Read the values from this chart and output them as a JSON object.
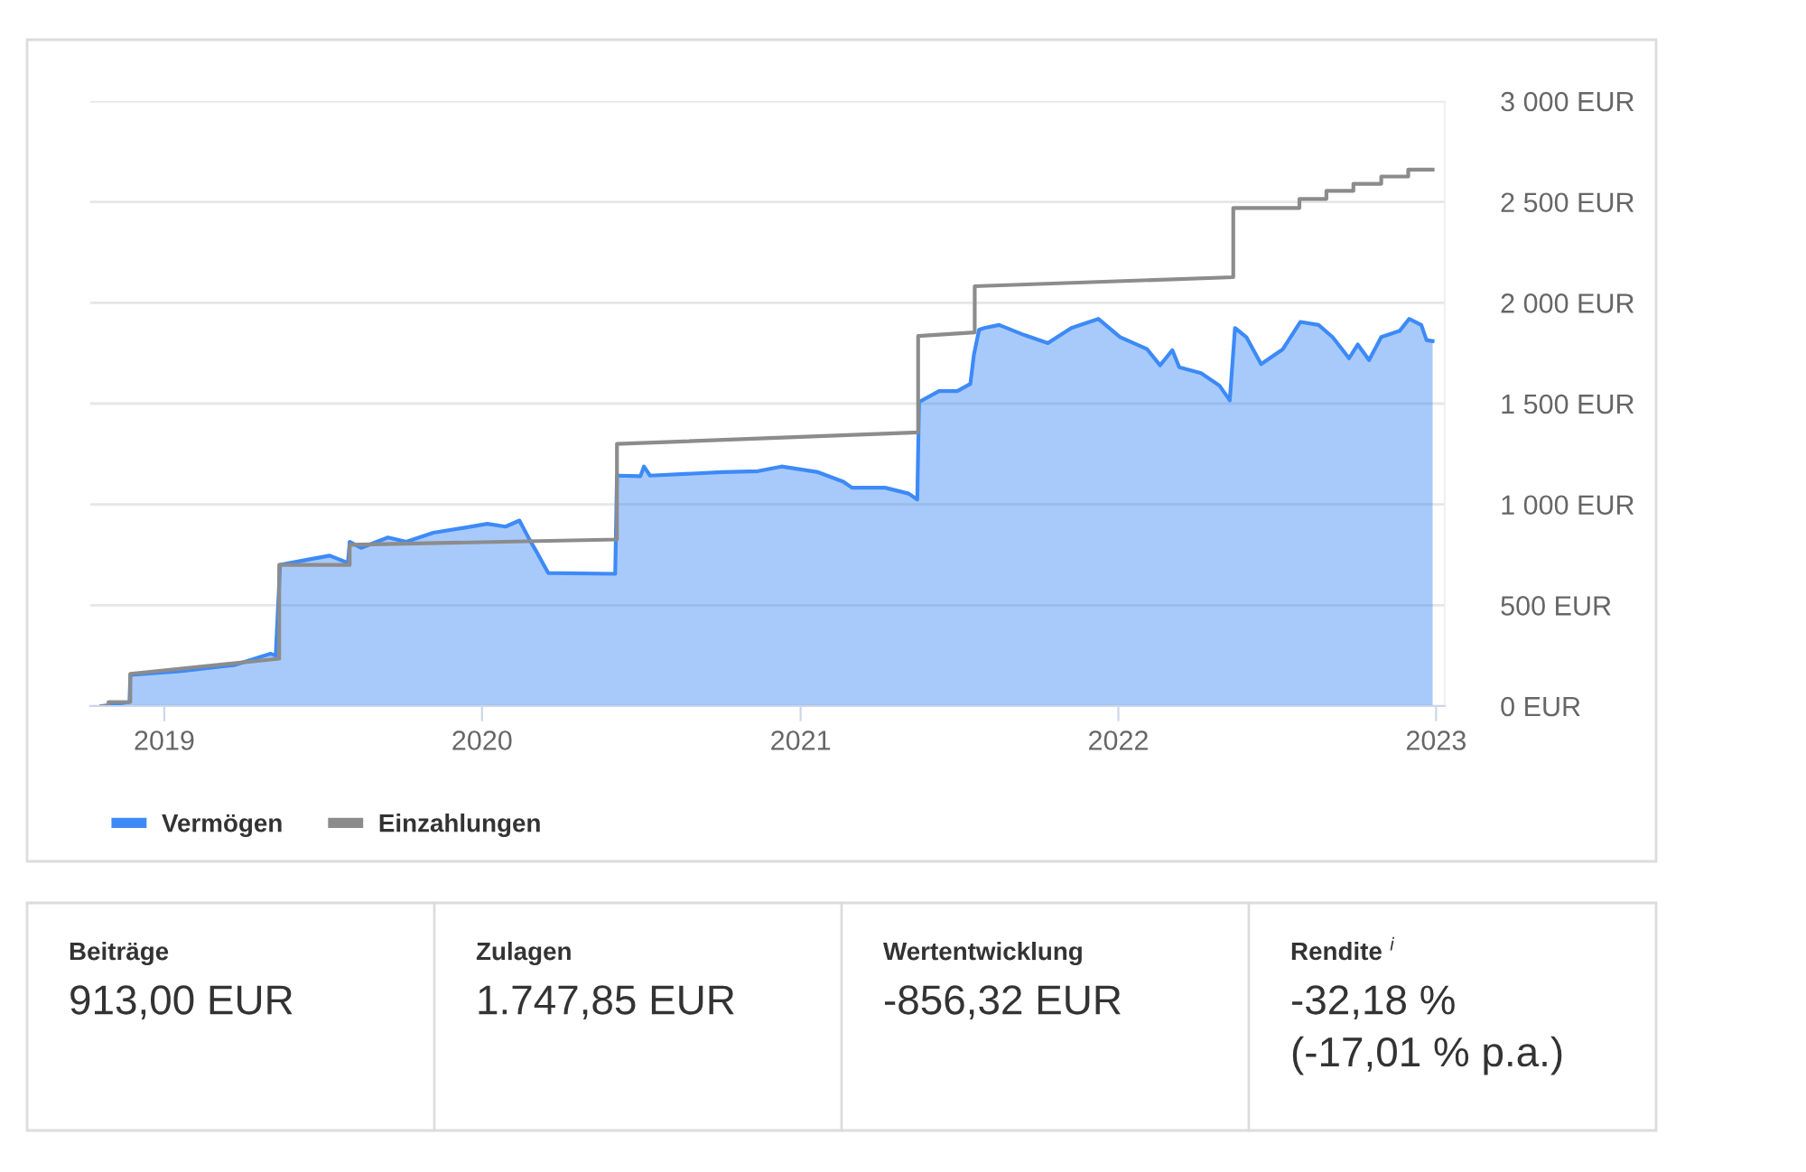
{
  "chart_data": [
    {
      "type": "area",
      "x": [
        "2018-10-21",
        "2018-11-22",
        "2018-11-23",
        "2019-01-19",
        "2019-03-22",
        "2019-05-03",
        "2019-05-09",
        "2019-05-14",
        "2019-06-13",
        "2019-07-10",
        "2019-07-31",
        "2019-08-02",
        "2019-08-15",
        "2019-09-15",
        "2019-10-06",
        "2019-11-06",
        "2019-12-11",
        "2020-01-07",
        "2020-01-28",
        "2020-02-13",
        "2020-02-24",
        "2020-03-05",
        "2020-03-17",
        "2020-06-02",
        "2020-06-04",
        "2020-07-01",
        "2020-07-05",
        "2020-07-12",
        "2020-10-03",
        "2020-11-13",
        "2020-12-10",
        "2021-01-21",
        "2021-02-19",
        "2021-03-01",
        "2021-04-08",
        "2021-05-05",
        "2021-05-15",
        "2021-05-17",
        "2021-06-09",
        "2021-06-30",
        "2021-07-15",
        "2021-07-19",
        "2021-07-25",
        "2021-07-31",
        "2021-08-17",
        "2021-09-15",
        "2021-10-12",
        "2021-11-08",
        "2021-12-09",
        "2022-01-03",
        "2022-02-03",
        "2022-02-18",
        "2022-03-04",
        "2022-03-12",
        "2022-04-06",
        "2022-04-27",
        "2022-05-09",
        "2022-05-15",
        "2022-05-28",
        "2022-06-14",
        "2022-07-09",
        "2022-07-29",
        "2022-08-19",
        "2022-09-04",
        "2022-09-23",
        "2022-10-03",
        "2022-10-16",
        "2022-10-30",
        "2022-11-20",
        "2022-12-01",
        "2022-12-15",
        "2022-12-21",
        "2022-12-28"
      ],
      "series": [
        {
          "name": "Vermögen",
          "type": "area",
          "color": "#3d8af7",
          "values": [
            0,
            20,
            155,
            173,
            203,
            260,
            250,
            700,
            725,
            746,
            710,
            815,
            785,
            836,
            815,
            860,
            884,
            904,
            890,
            920,
            830,
            755,
            660,
            656,
            1143,
            1140,
            1188,
            1143,
            1160,
            1165,
            1188,
            1160,
            1113,
            1083,
            1083,
            1054,
            1024,
            1508,
            1562,
            1562,
            1598,
            1741,
            1866,
            1875,
            1890,
            1840,
            1800,
            1875,
            1920,
            1830,
            1770,
            1690,
            1765,
            1680,
            1651,
            1590,
            1516,
            1875,
            1830,
            1696,
            1770,
            1905,
            1890,
            1830,
            1725,
            1793,
            1716,
            1830,
            1860,
            1920,
            1890,
            1815,
            1810
          ]
        },
        {
          "name": "Einzahlungen",
          "type": "line",
          "color": "#8c8c8c",
          "x": [
            "2018-10-21",
            "2018-10-29",
            "2018-10-29",
            "2018-11-23",
            "2018-11-23",
            "2019-05-13",
            "2019-05-13",
            "2019-08-02",
            "2019-08-02",
            "2020-06-04",
            "2020-06-04",
            "2021-05-16",
            "2021-05-16",
            "2021-07-20",
            "2021-07-20",
            "2022-05-13",
            "2022-05-13",
            "2022-07-28",
            "2022-07-28",
            "2022-08-28",
            "2022-08-28",
            "2022-09-28",
            "2022-09-28",
            "2022-10-30",
            "2022-10-30",
            "2022-11-30",
            "2022-11-30",
            "2022-12-28"
          ],
          "values": [
            0,
            0,
            20,
            20,
            160,
            235,
            700,
            700,
            800,
            826,
            1300,
            1357,
            1835,
            1853,
            2082,
            2127,
            2470,
            2470,
            2515,
            2515,
            2555,
            2555,
            2590,
            2590,
            2626,
            2626,
            2660,
            2660
          ]
        }
      ],
      "xlim": [
        "2018-10-08",
        "2023-01-11"
      ],
      "xticks": [
        {
          "value": "2019-01-01",
          "label": "2019"
        },
        {
          "value": "2020-01-01",
          "label": "2020"
        },
        {
          "value": "2021-01-01",
          "label": "2021"
        },
        {
          "value": "2022-01-01",
          "label": "2022"
        },
        {
          "value": "2023-01-01",
          "label": "2023"
        }
      ],
      "ylim": [
        0,
        3000
      ],
      "yticks": [
        {
          "value": 0,
          "label": "0 EUR"
        },
        {
          "value": 500,
          "label": "500 EUR"
        },
        {
          "value": 1000,
          "label": "1 000 EUR"
        },
        {
          "value": 1500,
          "label": "1 500 EUR"
        },
        {
          "value": 2000,
          "label": "2 000 EUR"
        },
        {
          "value": 2500,
          "label": "2 500 EUR"
        },
        {
          "value": 3000,
          "label": "3 000 EUR"
        }
      ],
      "grid": "y",
      "legend": "bottom left"
    },
    {
      "type": "other",
      "annotations": [
        "Beiträge",
        "913,00 EUR",
        "Zulagen",
        "1.747,85 EUR",
        "Wertentwicklung",
        "-856,32 EUR",
        "Rendite $^{i}$",
        "-32,18 %\n(-17,01 % p.a.)"
      ]
    }
  ]
}
